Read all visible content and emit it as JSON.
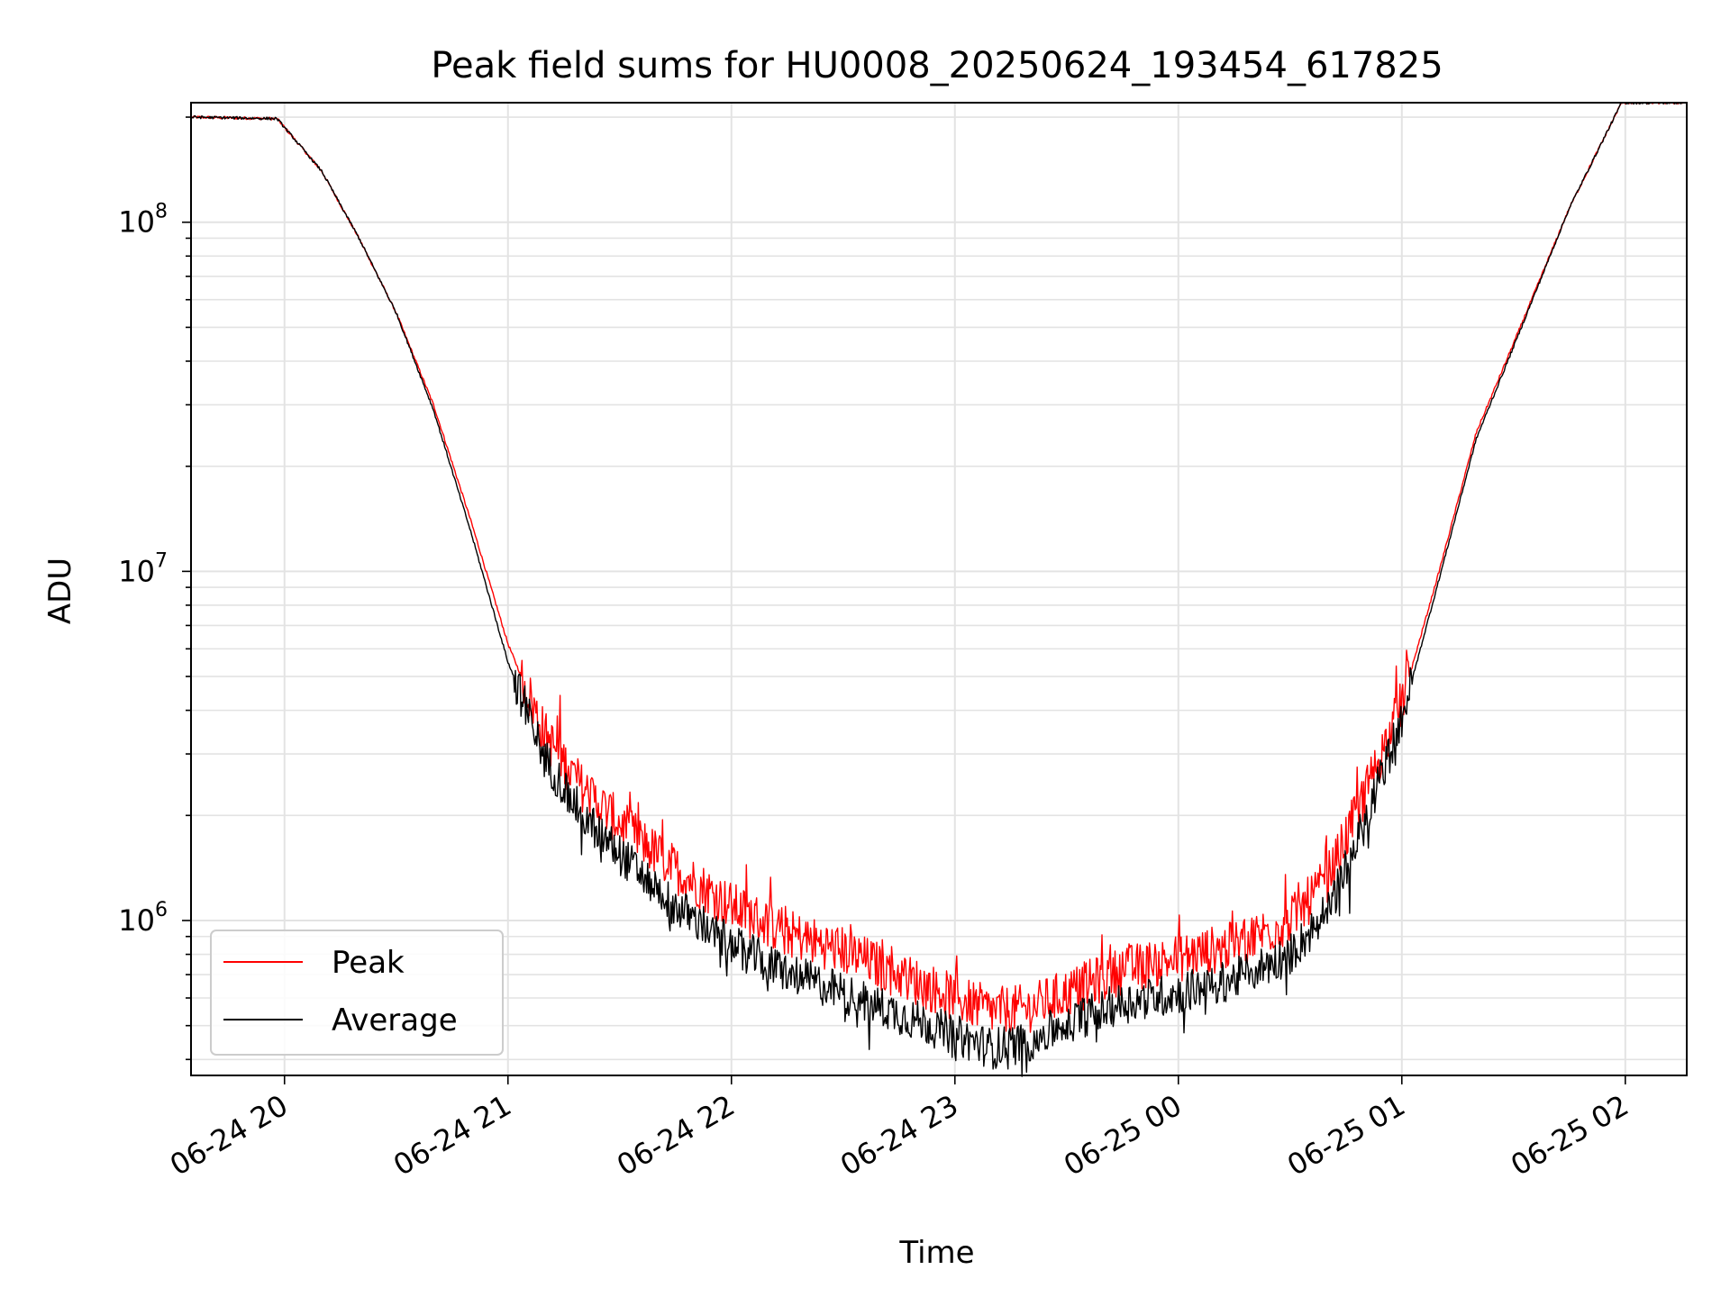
{
  "chart_data": {
    "type": "line",
    "title": "Peak field sums for HU0008_20250624_193454_617825",
    "xlabel": "Time",
    "ylabel": "ADU",
    "x_ticks": [
      "06-24 20",
      "06-24 21",
      "06-24 22",
      "06-24 23",
      "06-25 00",
      "06-25 01",
      "06-25 02"
    ],
    "y_ticks": [
      {
        "value": 1000000,
        "base": "10",
        "exp": "6"
      },
      {
        "value": 10000000,
        "base": "10",
        "exp": "7"
      },
      {
        "value": 100000000,
        "base": "10",
        "exp": "8"
      }
    ],
    "xlim": [
      "2025-06-24 19:34:54",
      "2025-06-25 02:16:30"
    ],
    "ylim": [
      360000,
      220000000
    ],
    "y_scale": "log",
    "grid": true,
    "legend_position": "lower-left",
    "series": [
      {
        "name": "Peak",
        "color": "#ff0000",
        "points": [
          [
            "2025-06-24 19:35",
            200000000
          ],
          [
            "2025-06-24 19:58",
            198000000
          ],
          [
            "2025-06-24 20:10",
            140000000
          ],
          [
            "2025-06-24 20:20",
            90000000
          ],
          [
            "2025-06-24 20:30",
            55000000
          ],
          [
            "2025-06-24 20:40",
            30000000
          ],
          [
            "2025-06-24 20:50",
            14000000
          ],
          [
            "2025-06-24 21:00",
            6200000
          ],
          [
            "2025-06-24 21:10",
            3400000
          ],
          [
            "2025-06-24 21:20",
            2400000
          ],
          [
            "2025-06-24 21:30",
            1900000
          ],
          [
            "2025-06-24 21:45",
            1400000
          ],
          [
            "2025-06-24 22:00",
            1100000
          ],
          [
            "2025-06-24 22:15",
            920000
          ],
          [
            "2025-06-24 22:30",
            820000
          ],
          [
            "2025-06-24 22:45",
            700000
          ],
          [
            "2025-06-24 23:00",
            600000
          ],
          [
            "2025-06-24 23:10",
            550000
          ],
          [
            "2025-06-24 23:20",
            560000
          ],
          [
            "2025-06-24 23:30",
            620000
          ],
          [
            "2025-06-24 23:45",
            720000
          ],
          [
            "2025-06-25 00:00",
            780000
          ],
          [
            "2025-06-25 00:15",
            850000
          ],
          [
            "2025-06-25 00:30",
            1000000
          ],
          [
            "2025-06-25 00:40",
            1300000
          ],
          [
            "2025-06-25 00:50",
            2300000
          ],
          [
            "2025-06-25 01:00",
            4200000
          ],
          [
            "2025-06-25 01:10",
            10000000
          ],
          [
            "2025-06-25 01:20",
            25000000
          ],
          [
            "2025-06-25 01:30",
            45000000
          ],
          [
            "2025-06-25 01:45",
            110000000
          ],
          [
            "2025-06-25 01:59",
            220000000
          ],
          [
            "2025-06-25 02:16",
            220000000
          ]
        ]
      },
      {
        "name": "Average",
        "color": "#000000",
        "points": [
          [
            "2025-06-24 19:35",
            200000000
          ],
          [
            "2025-06-24 19:58",
            198000000
          ],
          [
            "2025-06-24 20:10",
            140000000
          ],
          [
            "2025-06-24 20:20",
            90000000
          ],
          [
            "2025-06-24 20:30",
            55000000
          ],
          [
            "2025-06-24 20:40",
            29000000
          ],
          [
            "2025-06-24 20:50",
            13000000
          ],
          [
            "2025-06-24 21:00",
            5500000
          ],
          [
            "2025-06-24 21:10",
            2900000
          ],
          [
            "2025-06-24 21:20",
            2000000
          ],
          [
            "2025-06-24 21:30",
            1550000
          ],
          [
            "2025-06-24 21:45",
            1100000
          ],
          [
            "2025-06-24 22:00",
            850000
          ],
          [
            "2025-06-24 22:15",
            710000
          ],
          [
            "2025-06-24 22:30",
            620000
          ],
          [
            "2025-06-24 22:45",
            540000
          ],
          [
            "2025-06-24 23:00",
            470000
          ],
          [
            "2025-06-24 23:10",
            430000
          ],
          [
            "2025-06-24 23:20",
            450000
          ],
          [
            "2025-06-24 23:30",
            510000
          ],
          [
            "2025-06-24 23:45",
            580000
          ],
          [
            "2025-06-25 00:00",
            620000
          ],
          [
            "2025-06-25 00:15",
            680000
          ],
          [
            "2025-06-25 00:30",
            800000
          ],
          [
            "2025-06-25 00:40",
            1050000
          ],
          [
            "2025-06-25 00:50",
            1900000
          ],
          [
            "2025-06-25 01:00",
            3800000
          ],
          [
            "2025-06-25 01:10",
            9500000
          ],
          [
            "2025-06-25 01:20",
            24000000
          ],
          [
            "2025-06-25 01:30",
            44000000
          ],
          [
            "2025-06-25 01:45",
            110000000
          ],
          [
            "2025-06-25 01:59",
            220000000
          ],
          [
            "2025-06-25 02:16",
            220000000
          ]
        ]
      }
    ]
  }
}
